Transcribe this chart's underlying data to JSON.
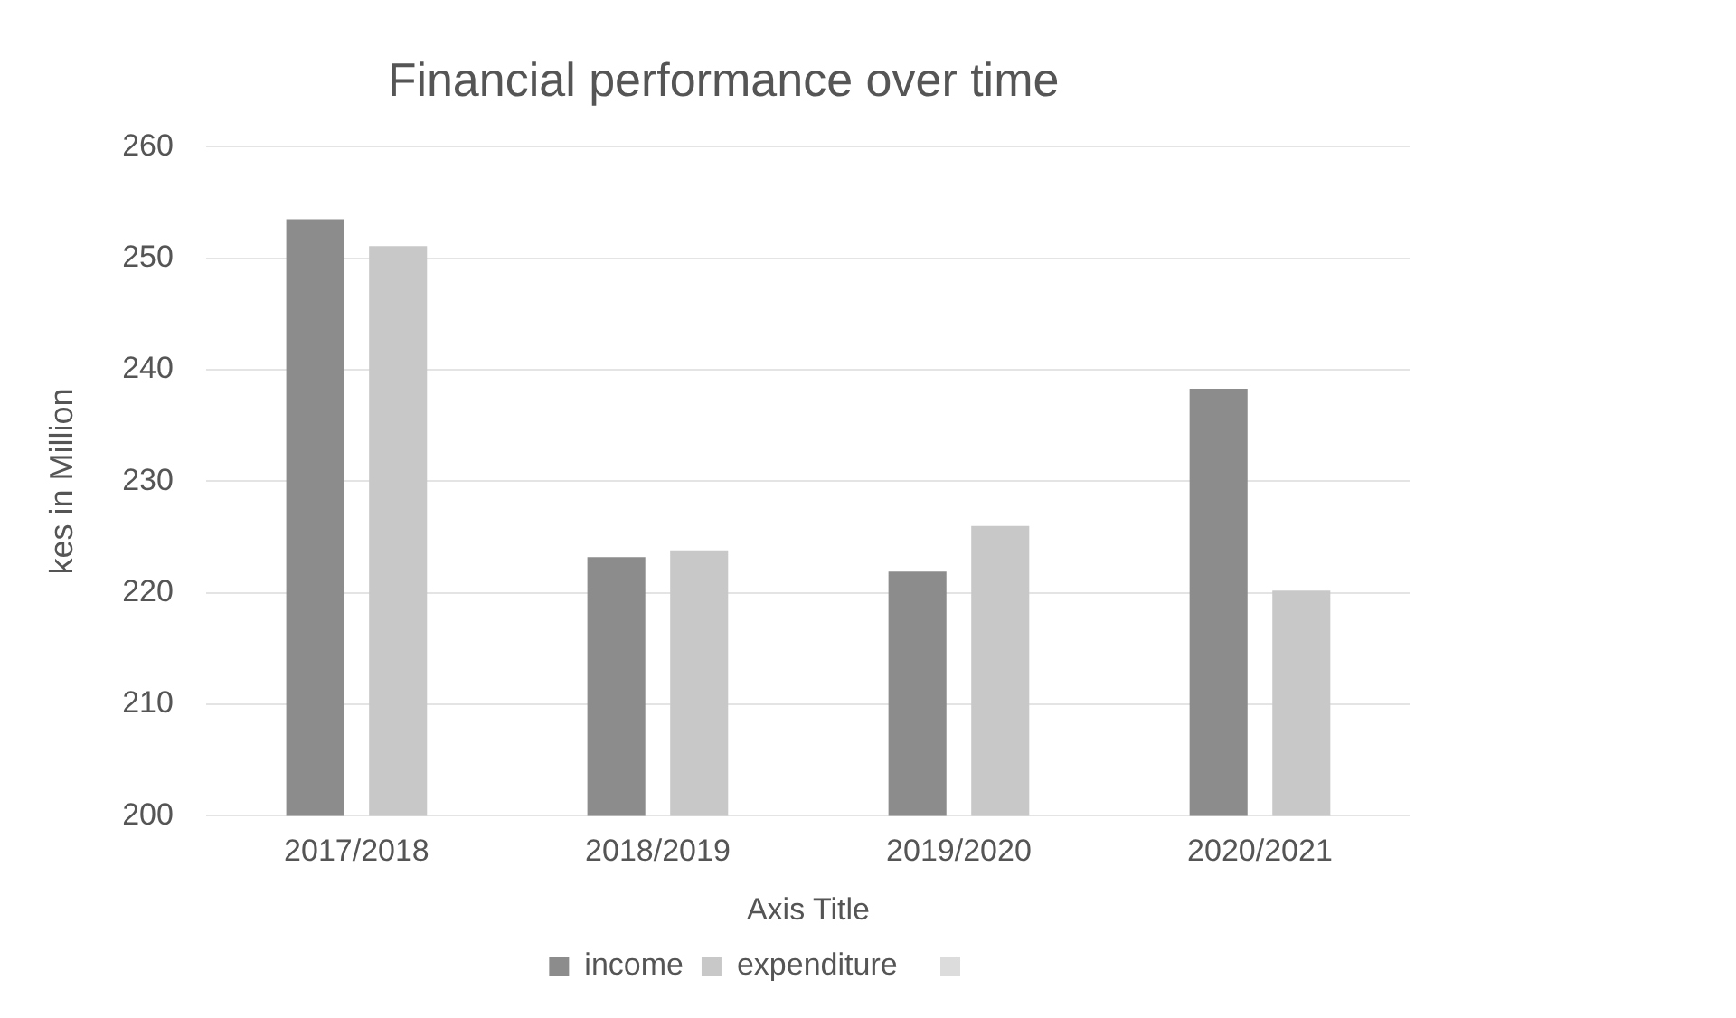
{
  "chart_data": {
    "type": "bar",
    "title": "Financial performance over time",
    "xlabel": "Axis Title",
    "ylabel": "kes in Million",
    "categories": [
      "2017/2018",
      "2018/2019",
      "2019/2020",
      "2020/2021"
    ],
    "series": [
      {
        "name": "income",
        "color": "#8c8c8c",
        "values": [
          253.5,
          223.2,
          221.9,
          238.3
        ]
      },
      {
        "name": "expenditure",
        "color": "#c8c8c8",
        "values": [
          251.1,
          223.8,
          226.0,
          220.2
        ]
      }
    ],
    "ylim": [
      200,
      260
    ],
    "yticks": [
      200,
      210,
      220,
      230,
      240,
      250,
      260
    ],
    "grid": "y",
    "legend": "bottom"
  }
}
